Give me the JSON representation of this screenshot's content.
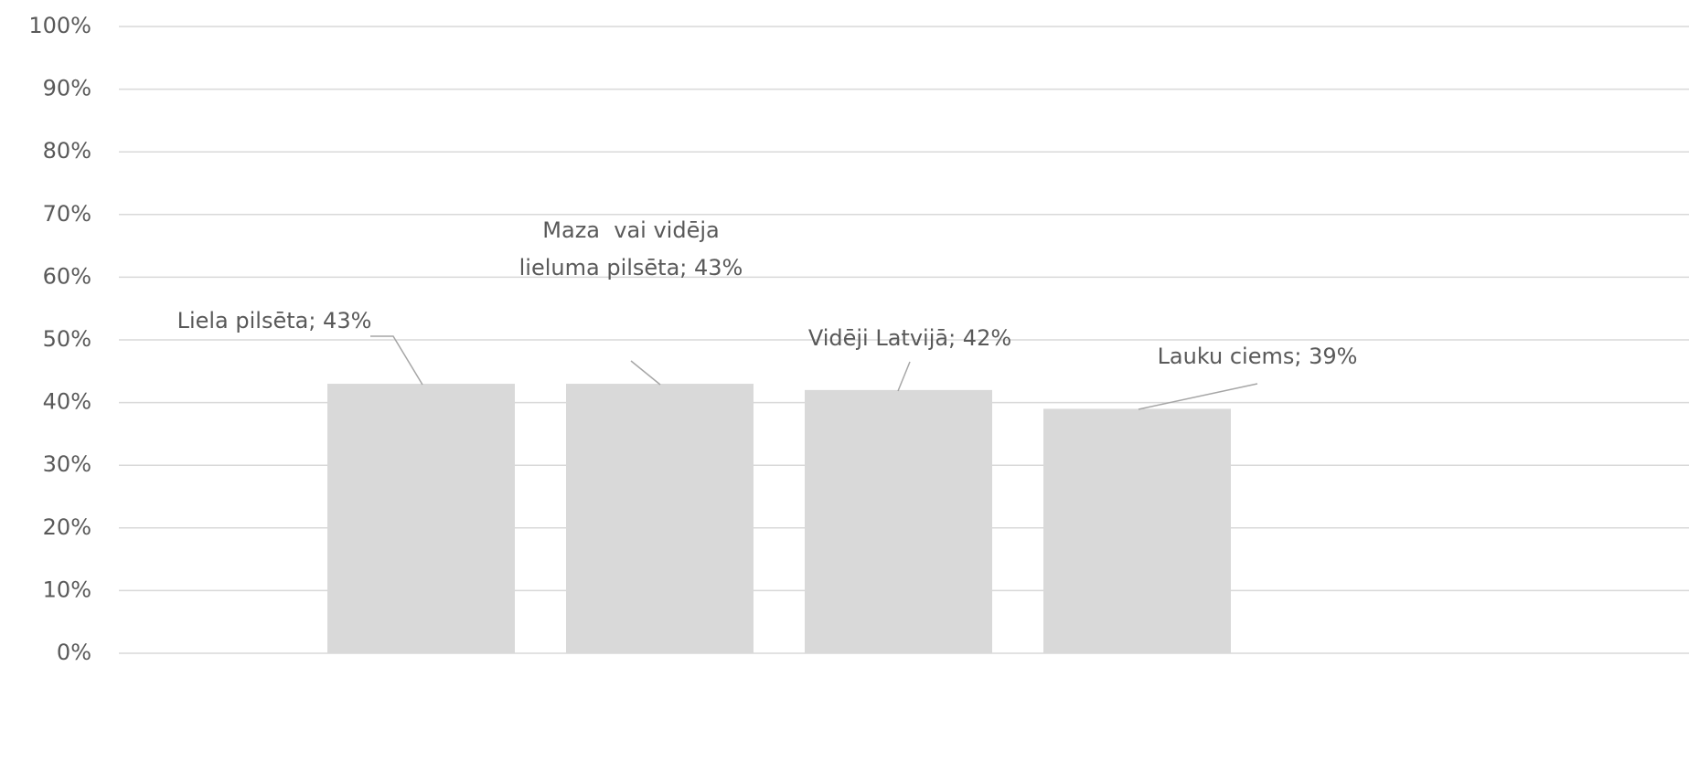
{
  "chart_data": {
    "type": "bar",
    "values": [
      43,
      43,
      42,
      39
    ],
    "value_labels": [
      "Liela pilsēta; 43%",
      "Maza  vai vidēja lieluma pilsēta; 43%",
      "Vidēji Latvijā; 42%",
      "Lauku ciems; 39%"
    ],
    "color": "#d9d9d9",
    "ylim": [
      0,
      100
    ],
    "yticks": [
      {
        "value": 0,
        "label": "0%"
      },
      {
        "value": 10,
        "label": "10%"
      },
      {
        "value": 20,
        "label": "20%"
      },
      {
        "value": 30,
        "label": "30%"
      },
      {
        "value": 40,
        "label": "40%"
      },
      {
        "value": 50,
        "label": "50%"
      },
      {
        "value": 60,
        "label": "60%"
      },
      {
        "value": 70,
        "label": "70%"
      },
      {
        "value": 80,
        "label": "80%"
      },
      {
        "value": 90,
        "label": "90%"
      },
      {
        "value": 100,
        "label": "100%"
      }
    ],
    "grid": true
  }
}
